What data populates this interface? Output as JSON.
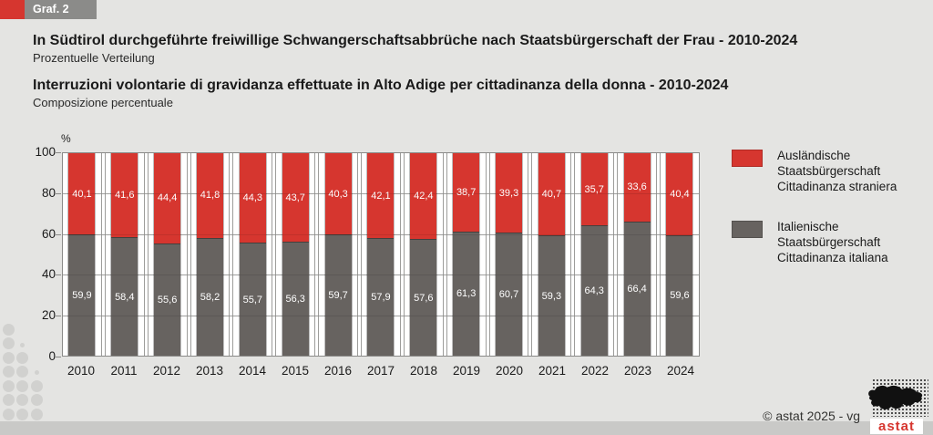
{
  "badge": {
    "label": "Graf. 2"
  },
  "header": {
    "title_de": "In Südtirol durchgeführte freiwillige Schwangerschaftsabbrüche nach Staatsbürgerschaft der Frau - 2010-2024",
    "subtitle_de": "Prozentuelle Verteilung",
    "title_it": "Interruzioni volontarie di gravidanza effettuate in Alto Adige per cittadinanza della donna - 2010-2024",
    "subtitle_it": "Composizione percentuale"
  },
  "chart_data": {
    "type": "bar",
    "stacked": true,
    "percent_stacked": true,
    "title": "",
    "xlabel": "",
    "ylabel": "%",
    "ylim": [
      0,
      100
    ],
    "yticks": [
      0,
      20,
      40,
      60,
      80,
      100
    ],
    "grid": true,
    "legend_position": "right",
    "categories": [
      "2010",
      "2011",
      "2012",
      "2013",
      "2014",
      "2015",
      "2016",
      "2017",
      "2018",
      "2019",
      "2020",
      "2021",
      "2022",
      "2023",
      "2024"
    ],
    "series": [
      {
        "name": "Ausländische Staatsbürgerschaft / Cittadinanza straniera",
        "color": "#d6362f",
        "values": [
          40.1,
          41.6,
          44.4,
          41.8,
          44.3,
          43.7,
          40.3,
          42.1,
          42.4,
          38.7,
          39.3,
          40.7,
          35.7,
          33.6,
          40.4
        ]
      },
      {
        "name": "Italienische Staatsbürgerschaft / Cittadinanza italiana",
        "color": "#676360",
        "values": [
          59.9,
          58.4,
          55.6,
          58.2,
          55.7,
          56.3,
          59.7,
          57.9,
          57.6,
          61.3,
          60.7,
          59.3,
          64.3,
          66.4,
          59.6
        ]
      }
    ]
  },
  "legend": {
    "items": [
      {
        "color": "#d6362f",
        "lines": [
          "Ausländische",
          "Staatsbürgerschaft",
          "Cittadinanza straniera"
        ]
      },
      {
        "color": "#676360",
        "lines": [
          "Italienische",
          "Staatsbürgerschaft",
          "Cittadinanza italiana"
        ]
      }
    ]
  },
  "footer": {
    "copyright": "© astat 2025 -  vg",
    "logo_text": "astat"
  }
}
